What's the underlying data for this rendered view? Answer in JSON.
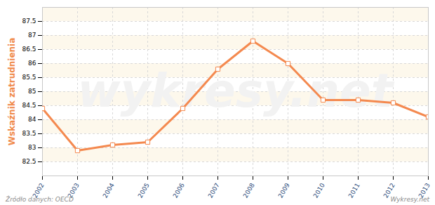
{
  "chart_data": {
    "type": "line",
    "y_label": "Wskaźnik zatrudnienia",
    "annotations": [
      "wykresy.net",
      "Źródło danych: OECD",
      "Wykresy.net"
    ],
    "x": [
      2002,
      2003,
      2004,
      2005,
      2006,
      2007,
      2008,
      2009,
      2010,
      2011,
      2012,
      2013
    ],
    "values": [
      84.4,
      82.9,
      83.1,
      83.2,
      84.4,
      85.8,
      86.8,
      86.0,
      84.7,
      84.7,
      84.6,
      84.1
    ],
    "color": "#f4894f",
    "marker": "square",
    "xlim": [
      2002,
      2013
    ],
    "xticks": [
      2002,
      2003,
      2004,
      2005,
      2006,
      2007,
      2008,
      2009,
      2010,
      2011,
      2012,
      2013
    ],
    "ylim": [
      82,
      88
    ],
    "yticks": [
      82.5,
      83,
      83.5,
      84,
      84.5,
      85,
      85.5,
      86,
      86.5,
      87,
      87.5
    ],
    "grid": true
  }
}
